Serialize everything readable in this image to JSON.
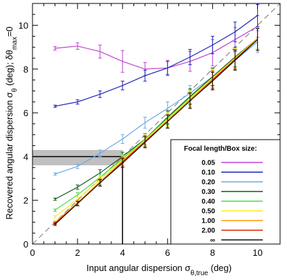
{
  "chart_data": {
    "type": "line",
    "xlabel": "Input angular dispersion σθ,true (deg)",
    "xlabel_parts": {
      "main": "Input angular dispersion σ",
      "sub": "θ,true",
      "tail": " (deg)"
    },
    "ylabel": "Recovered angular dispersion σθ (deg); δθmax=0",
    "ylabel_parts": {
      "main": "Recovered angular dispersion σ",
      "sub1": "θ",
      "mid": " (deg); δθ",
      "sub2": "max",
      "tail": "=0"
    },
    "xlim": [
      0,
      11
    ],
    "ylim": [
      0,
      11
    ],
    "x_ticks": [
      "0",
      "2",
      "4",
      "6",
      "8",
      "10"
    ],
    "y_ticks": [
      "0",
      "2",
      "4",
      "6",
      "8",
      "10"
    ],
    "x_tick_values": [
      0,
      2,
      4,
      6,
      8,
      10
    ],
    "y_tick_values": [
      0,
      2,
      4,
      6,
      8,
      10
    ],
    "grid": false,
    "legend_position": "bottom-right",
    "legend_title": "Focal length/Box size:",
    "x": [
      1,
      2,
      3,
      4,
      5,
      6,
      7,
      8,
      9,
      10
    ],
    "one_to_one_line": true,
    "highlight": {
      "x": 4,
      "y": 4,
      "band": [
        3.6,
        4.3
      ]
    },
    "series": [
      {
        "name": "0.05",
        "color": "#c040d0",
        "values": [
          8.95,
          9.05,
          8.8,
          8.35,
          8.0,
          8.05,
          8.35,
          8.75,
          9.35,
          9.95
        ],
        "err": [
          0.08,
          0.15,
          0.3,
          0.5,
          0.3,
          0.35,
          0.45,
          0.6,
          0.55,
          0.5
        ]
      },
      {
        "name": "0.10",
        "color": "#1a22b8",
        "values": [
          6.3,
          6.5,
          6.85,
          7.25,
          7.7,
          8.05,
          8.55,
          9.1,
          9.7,
          10.45
        ],
        "err": [
          0.05,
          0.1,
          0.15,
          0.2,
          0.25,
          0.3,
          0.35,
          0.4,
          0.45,
          0.5
        ]
      },
      {
        "name": "0.20",
        "color": "#6aa8e6",
        "values": [
          3.2,
          3.55,
          4.15,
          4.8,
          5.55,
          6.2,
          6.9,
          7.65,
          8.4,
          9.25
        ],
        "err": [
          0.05,
          0.1,
          0.15,
          0.2,
          0.25,
          0.3,
          0.35,
          0.4,
          0.45,
          0.5
        ]
      },
      {
        "name": "0.30",
        "color": "#0a5a10",
        "values": [
          2.05,
          2.6,
          3.25,
          4.0,
          4.8,
          5.8,
          6.75,
          7.65,
          8.55,
          9.4
        ],
        "err": [
          0.05,
          0.1,
          0.15,
          0.2,
          0.25,
          0.3,
          0.35,
          0.4,
          0.45,
          0.5
        ]
      },
      {
        "name": "0.40",
        "color": "#44dd44",
        "values": [
          1.55,
          2.25,
          3.05,
          3.9,
          4.8,
          5.75,
          6.7,
          7.6,
          8.5,
          9.4
        ],
        "err": [
          0.05,
          0.1,
          0.15,
          0.2,
          0.25,
          0.3,
          0.35,
          0.4,
          0.45,
          0.5
        ]
      },
      {
        "name": "0.50",
        "color": "#ffee22",
        "values": [
          1.25,
          2.05,
          2.95,
          3.85,
          4.75,
          5.7,
          6.65,
          7.6,
          8.5,
          9.4
        ],
        "err": [
          0.05,
          0.1,
          0.15,
          0.2,
          0.25,
          0.3,
          0.35,
          0.4,
          0.45,
          0.5
        ]
      },
      {
        "name": "1.00",
        "color": "#ff9900",
        "values": [
          1.0,
          1.9,
          2.85,
          3.8,
          4.7,
          5.65,
          6.6,
          7.55,
          8.45,
          9.4
        ],
        "err": [
          0.05,
          0.1,
          0.15,
          0.2,
          0.25,
          0.3,
          0.35,
          0.4,
          0.45,
          0.5
        ]
      },
      {
        "name": "2.00",
        "color": "#dd2200",
        "values": [
          0.95,
          1.85,
          2.8,
          3.75,
          4.7,
          5.6,
          6.55,
          7.5,
          8.45,
          9.35
        ],
        "err": [
          0.05,
          0.1,
          0.15,
          0.2,
          0.25,
          0.3,
          0.35,
          0.4,
          0.45,
          0.5
        ]
      },
      {
        "name": "∞",
        "color": "#111111",
        "values": [
          0.9,
          1.85,
          2.8,
          3.7,
          4.65,
          5.6,
          6.55,
          7.45,
          8.4,
          9.35
        ],
        "err": [
          0.05,
          0.1,
          0.15,
          0.2,
          0.25,
          0.3,
          0.35,
          0.4,
          0.45,
          0.5
        ]
      }
    ]
  }
}
